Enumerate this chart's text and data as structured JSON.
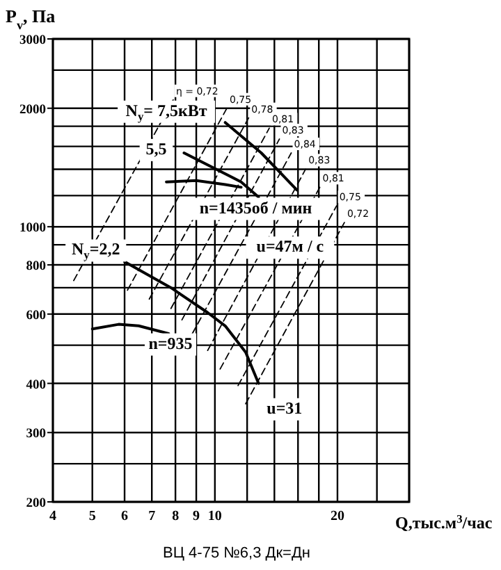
{
  "chart_data": {
    "type": "line",
    "xlabel": "Q,тыс.м$^{3}$/час",
    "ylabel": "P$_{v}$, Па",
    "log": "xy",
    "grid": true,
    "marker": "none",
    "xlim": [
      4,
      30
    ],
    "xticks": [
      4,
      5,
      6,
      7,
      8,
      9,
      10,
      {
        "value": 12,
        "label": null
      },
      {
        "value": 14,
        "label": null
      },
      {
        "value": 16,
        "label": null
      },
      {
        "value": 18,
        "label": null
      },
      20,
      {
        "value": 25,
        "label": null
      },
      {
        "value": 30,
        "label": null
      }
    ],
    "ylim": [
      200,
      3000
    ],
    "yticks": [
      200,
      {
        "value": 250,
        "label": null
      },
      300,
      400,
      {
        "value": 500,
        "label": null
      },
      600,
      {
        "value": 700,
        "label": null
      },
      800,
      {
        "value": 900,
        "label": null
      },
      1000,
      {
        "value": 1200,
        "label": null
      },
      {
        "value": 1400,
        "label": null
      },
      {
        "value": 1600,
        "label": null
      },
      {
        "value": 1800,
        "label": null
      },
      2000,
      {
        "value": 2500,
        "label": null
      },
      3000
    ],
    "series": [
      {
        "color": "#000000",
        "line_style": "solid",
        "x": [
          10.6,
          13,
          15.9
        ],
        "values": [
          1840,
          1540,
          1240
        ]
      },
      {
        "color": "#000000",
        "line_style": "solid",
        "x": [
          8.4,
          11.6,
          12.8
        ],
        "values": [
          1540,
          1300,
          1190
        ]
      },
      {
        "color": "#000000",
        "line_style": "solid",
        "x": [
          7.6,
          9,
          10.6,
          11.6
        ],
        "values": [
          1300,
          1310,
          1280,
          1260
        ]
      },
      {
        "color": "#000000",
        "line_style": "solid",
        "x": [
          5,
          5.8,
          6.5,
          7.7
        ],
        "values": [
          550,
          565,
          560,
          535
        ]
      },
      {
        "color": "#000000",
        "line_style": "solid",
        "x": [
          6,
          7.8,
          9.6,
          10.6,
          11.9,
          12.8
        ],
        "values": [
          815,
          700,
          605,
          560,
          480,
          400
        ]
      },
      {
        "name": "η = 0,72",
        "color": "#000000",
        "line_style": "dashed",
        "x": [
          4.5,
          7.9
        ],
        "values": [
          730,
          2100
        ]
      },
      {
        "name": "0,75",
        "color": "#000000",
        "line_style": "dashed",
        "x": [
          6.1,
          10.7
        ],
        "values": [
          690,
          2000
        ]
      },
      {
        "name": "0,78",
        "color": "#000000",
        "line_style": "dashed",
        "x": [
          6.9,
          12.1
        ],
        "values": [
          655,
          1890
        ]
      },
      {
        "name": "0,81",
        "color": "#000000",
        "line_style": "dashed",
        "x": [
          7.8,
          13.6
        ],
        "values": [
          620,
          1780
        ]
      },
      {
        "name": "0,83",
        "color": "#000000",
        "line_style": "dashed",
        "x": [
          8.3,
          14.4
        ],
        "values": [
          580,
          1670
        ]
      },
      {
        "name": "0,84",
        "color": "#000000",
        "line_style": "dashed",
        "x": [
          8.8,
          15.4
        ],
        "values": [
          535,
          1540
        ]
      },
      {
        "name": "0,83",
        "color": "#000000",
        "line_style": "dashed",
        "x": [
          9.6,
          16.7
        ],
        "values": [
          485,
          1400
        ]
      },
      {
        "name": "0,81",
        "color": "#000000",
        "line_style": "dashed",
        "x": [
          10.3,
          18.1
        ],
        "values": [
          435,
          1260
        ]
      },
      {
        "name": "0,75",
        "color": "#000000",
        "line_style": "dashed",
        "x": [
          11.4,
          19.9
        ],
        "values": [
          395,
          1130
        ]
      },
      {
        "name": "0,72",
        "color": "#000000",
        "line_style": "dashed",
        "x": [
          11.9,
          20.8
        ],
        "values": [
          355,
          1025
        ]
      }
    ],
    "annotations": [
      {
        "text": "N$_{y}$= 7,5кВт",
        "x": 7.6,
        "y": 1960
      },
      {
        "text": "n=1435об / мин",
        "x": 12.6,
        "y": 1110
      },
      {
        "text": "u=47м / с",
        "x": 15.3,
        "y": 885
      },
      {
        "text": "N$_{y}$=2,2",
        "x": 5.1,
        "y": 870
      },
      "5,5",
      "n=935",
      "u=31",
      "ВЦ 4-75 №6,3 Дк=Дн"
    ]
  }
}
